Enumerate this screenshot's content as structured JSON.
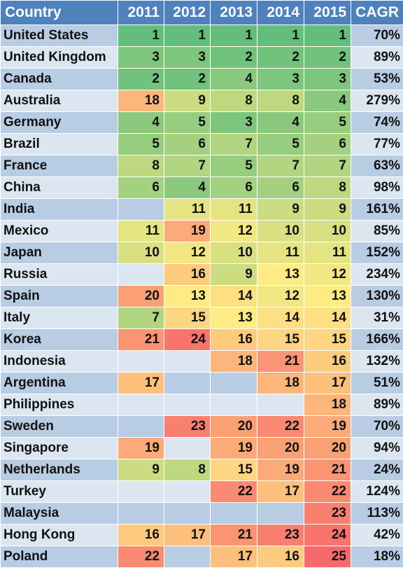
{
  "chart_data": {
    "type": "table",
    "columns": [
      "Country",
      "2011",
      "2012",
      "2013",
      "2014",
      "2015",
      "CAGR"
    ],
    "rows": [
      {
        "country": "United States",
        "ranks": [
          1,
          1,
          1,
          1,
          1
        ],
        "cagr": "70%"
      },
      {
        "country": "United Kingdom",
        "ranks": [
          3,
          3,
          2,
          2,
          2
        ],
        "cagr": "89%"
      },
      {
        "country": "Canada",
        "ranks": [
          2,
          2,
          4,
          3,
          3
        ],
        "cagr": "53%"
      },
      {
        "country": "Australia",
        "ranks": [
          18,
          9,
          8,
          8,
          4
        ],
        "cagr": "279%"
      },
      {
        "country": "Germany",
        "ranks": [
          4,
          5,
          3,
          4,
          5
        ],
        "cagr": "74%"
      },
      {
        "country": "Brazil",
        "ranks": [
          5,
          6,
          7,
          5,
          6
        ],
        "cagr": "77%"
      },
      {
        "country": "France",
        "ranks": [
          8,
          7,
          5,
          7,
          7
        ],
        "cagr": "63%"
      },
      {
        "country": "China",
        "ranks": [
          6,
          4,
          6,
          6,
          8
        ],
        "cagr": "98%"
      },
      {
        "country": "India",
        "ranks": [
          null,
          11,
          11,
          9,
          9
        ],
        "cagr": "161%"
      },
      {
        "country": "Mexico",
        "ranks": [
          11,
          19,
          12,
          10,
          10
        ],
        "cagr": "85%"
      },
      {
        "country": "Japan",
        "ranks": [
          10,
          12,
          10,
          11,
          11
        ],
        "cagr": "152%"
      },
      {
        "country": "Russia",
        "ranks": [
          null,
          16,
          9,
          13,
          12
        ],
        "cagr": "234%"
      },
      {
        "country": "Spain",
        "ranks": [
          20,
          13,
          14,
          12,
          13
        ],
        "cagr": "130%"
      },
      {
        "country": "Italy",
        "ranks": [
          7,
          15,
          13,
          14,
          14
        ],
        "cagr": "31%"
      },
      {
        "country": "Korea",
        "ranks": [
          21,
          24,
          16,
          15,
          15
        ],
        "cagr": "166%"
      },
      {
        "country": "Indonesia",
        "ranks": [
          null,
          null,
          18,
          21,
          16
        ],
        "cagr": "132%"
      },
      {
        "country": "Argentina",
        "ranks": [
          17,
          null,
          null,
          18,
          17
        ],
        "cagr": "51%"
      },
      {
        "country": "Philippines",
        "ranks": [
          null,
          null,
          null,
          null,
          18
        ],
        "cagr": "89%"
      },
      {
        "country": "Sweden",
        "ranks": [
          null,
          23,
          20,
          22,
          19
        ],
        "cagr": "70%"
      },
      {
        "country": "Singapore",
        "ranks": [
          19,
          null,
          19,
          20,
          20
        ],
        "cagr": "94%"
      },
      {
        "country": "Netherlands",
        "ranks": [
          9,
          8,
          15,
          19,
          21
        ],
        "cagr": "24%"
      },
      {
        "country": "Turkey",
        "ranks": [
          null,
          null,
          22,
          17,
          22
        ],
        "cagr": "124%"
      },
      {
        "country": "Malaysia",
        "ranks": [
          null,
          null,
          null,
          null,
          23
        ],
        "cagr": "113%"
      },
      {
        "country": "Hong Kong",
        "ranks": [
          16,
          17,
          21,
          23,
          24
        ],
        "cagr": "42%"
      },
      {
        "country": "Poland",
        "ranks": [
          22,
          null,
          17,
          16,
          25
        ],
        "cagr": "18%"
      }
    ],
    "color_scale": {
      "low_rank_color": "#63be7b",
      "mid_rank_color": "#ffeb84",
      "high_rank_color": "#f8696b"
    },
    "band_colors": [
      "#b8cce4",
      "#dce6f1"
    ],
    "header_color": "#4f81bd"
  }
}
